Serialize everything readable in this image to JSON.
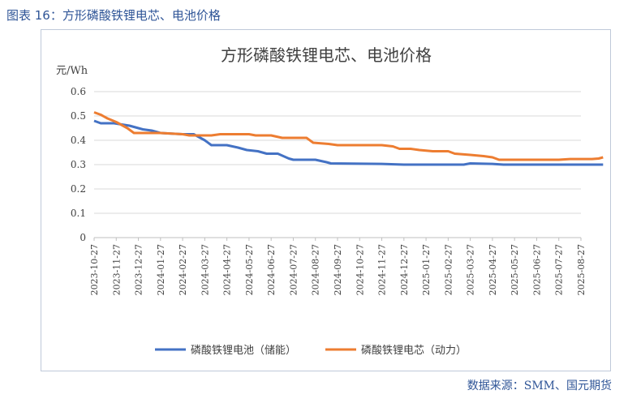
{
  "caption": "图表 16：方形磷酸铁锂电芯、电池价格",
  "source": "数据来源：SMM、国元期货",
  "chart_data": {
    "type": "line",
    "title": "方形磷酸铁锂电芯、电池价格",
    "ylabel": "元/Wh",
    "xlabel": "",
    "ylim": [
      0,
      0.6
    ],
    "yticks": [
      0,
      0.1,
      0.2,
      0.3,
      0.4,
      0.5,
      0.6
    ],
    "xticks": [
      "2023-10-27",
      "2023-11-27",
      "2023-12-27",
      "2024-01-27",
      "2024-02-27",
      "2024-03-27",
      "2024-04-27",
      "2024-05-27",
      "2024-06-27",
      "2024-07-27",
      "2024-08-27",
      "2024-09-27",
      "2024-10-27",
      "2024-11-27",
      "2024-12-27",
      "2025-01-27",
      "2025-02-27",
      "2025-03-27",
      "2025-04-27",
      "2025-05-27",
      "2025-06-27",
      "2025-07-27",
      "2025-08-27"
    ],
    "grid": true,
    "legend": "bottom",
    "series": [
      {
        "name": "磷酸铁锂电池（储能）",
        "color": "#4472c4",
        "points": [
          [
            0,
            0.48
          ],
          [
            0.3,
            0.47
          ],
          [
            0.9,
            0.47
          ],
          [
            1.6,
            0.46
          ],
          [
            2.2,
            0.445
          ],
          [
            2.6,
            0.44
          ],
          [
            3.0,
            0.43
          ],
          [
            4.0,
            0.425
          ],
          [
            4.5,
            0.425
          ],
          [
            5.0,
            0.4
          ],
          [
            5.3,
            0.38
          ],
          [
            6.0,
            0.38
          ],
          [
            6.5,
            0.37
          ],
          [
            6.9,
            0.36
          ],
          [
            7.4,
            0.355
          ],
          [
            7.8,
            0.345
          ],
          [
            8.3,
            0.345
          ],
          [
            8.8,
            0.325
          ],
          [
            9.0,
            0.32
          ],
          [
            10.0,
            0.32
          ],
          [
            10.5,
            0.31
          ],
          [
            10.7,
            0.305
          ],
          [
            13.0,
            0.303
          ],
          [
            14.0,
            0.3
          ],
          [
            16.7,
            0.3
          ],
          [
            17.0,
            0.305
          ],
          [
            18.0,
            0.303
          ],
          [
            18.5,
            0.3
          ],
          [
            20.6,
            0.3
          ],
          [
            22.0,
            0.3
          ],
          [
            23.0,
            0.3
          ]
        ]
      },
      {
        "name": "磷酸铁锂电芯（动力）",
        "color": "#ed7d31",
        "points": [
          [
            0,
            0.515
          ],
          [
            0.3,
            0.505
          ],
          [
            0.6,
            0.49
          ],
          [
            1.0,
            0.475
          ],
          [
            1.5,
            0.45
          ],
          [
            1.8,
            0.43
          ],
          [
            3.0,
            0.43
          ],
          [
            4.0,
            0.425
          ],
          [
            4.3,
            0.42
          ],
          [
            5.3,
            0.42
          ],
          [
            5.7,
            0.425
          ],
          [
            7.0,
            0.425
          ],
          [
            7.3,
            0.42
          ],
          [
            8.0,
            0.42
          ],
          [
            8.5,
            0.41
          ],
          [
            9.6,
            0.41
          ],
          [
            9.9,
            0.39
          ],
          [
            10.6,
            0.385
          ],
          [
            11.0,
            0.38
          ],
          [
            13.0,
            0.38
          ],
          [
            13.5,
            0.375
          ],
          [
            13.8,
            0.365
          ],
          [
            14.3,
            0.365
          ],
          [
            14.7,
            0.36
          ],
          [
            15.3,
            0.355
          ],
          [
            16.0,
            0.355
          ],
          [
            16.3,
            0.345
          ],
          [
            17.0,
            0.34
          ],
          [
            17.6,
            0.335
          ],
          [
            18.0,
            0.33
          ],
          [
            18.3,
            0.32
          ],
          [
            20.0,
            0.32
          ],
          [
            21.0,
            0.32
          ],
          [
            21.5,
            0.323
          ],
          [
            22.5,
            0.323
          ],
          [
            22.8,
            0.325
          ],
          [
            23.0,
            0.33
          ]
        ]
      }
    ]
  }
}
